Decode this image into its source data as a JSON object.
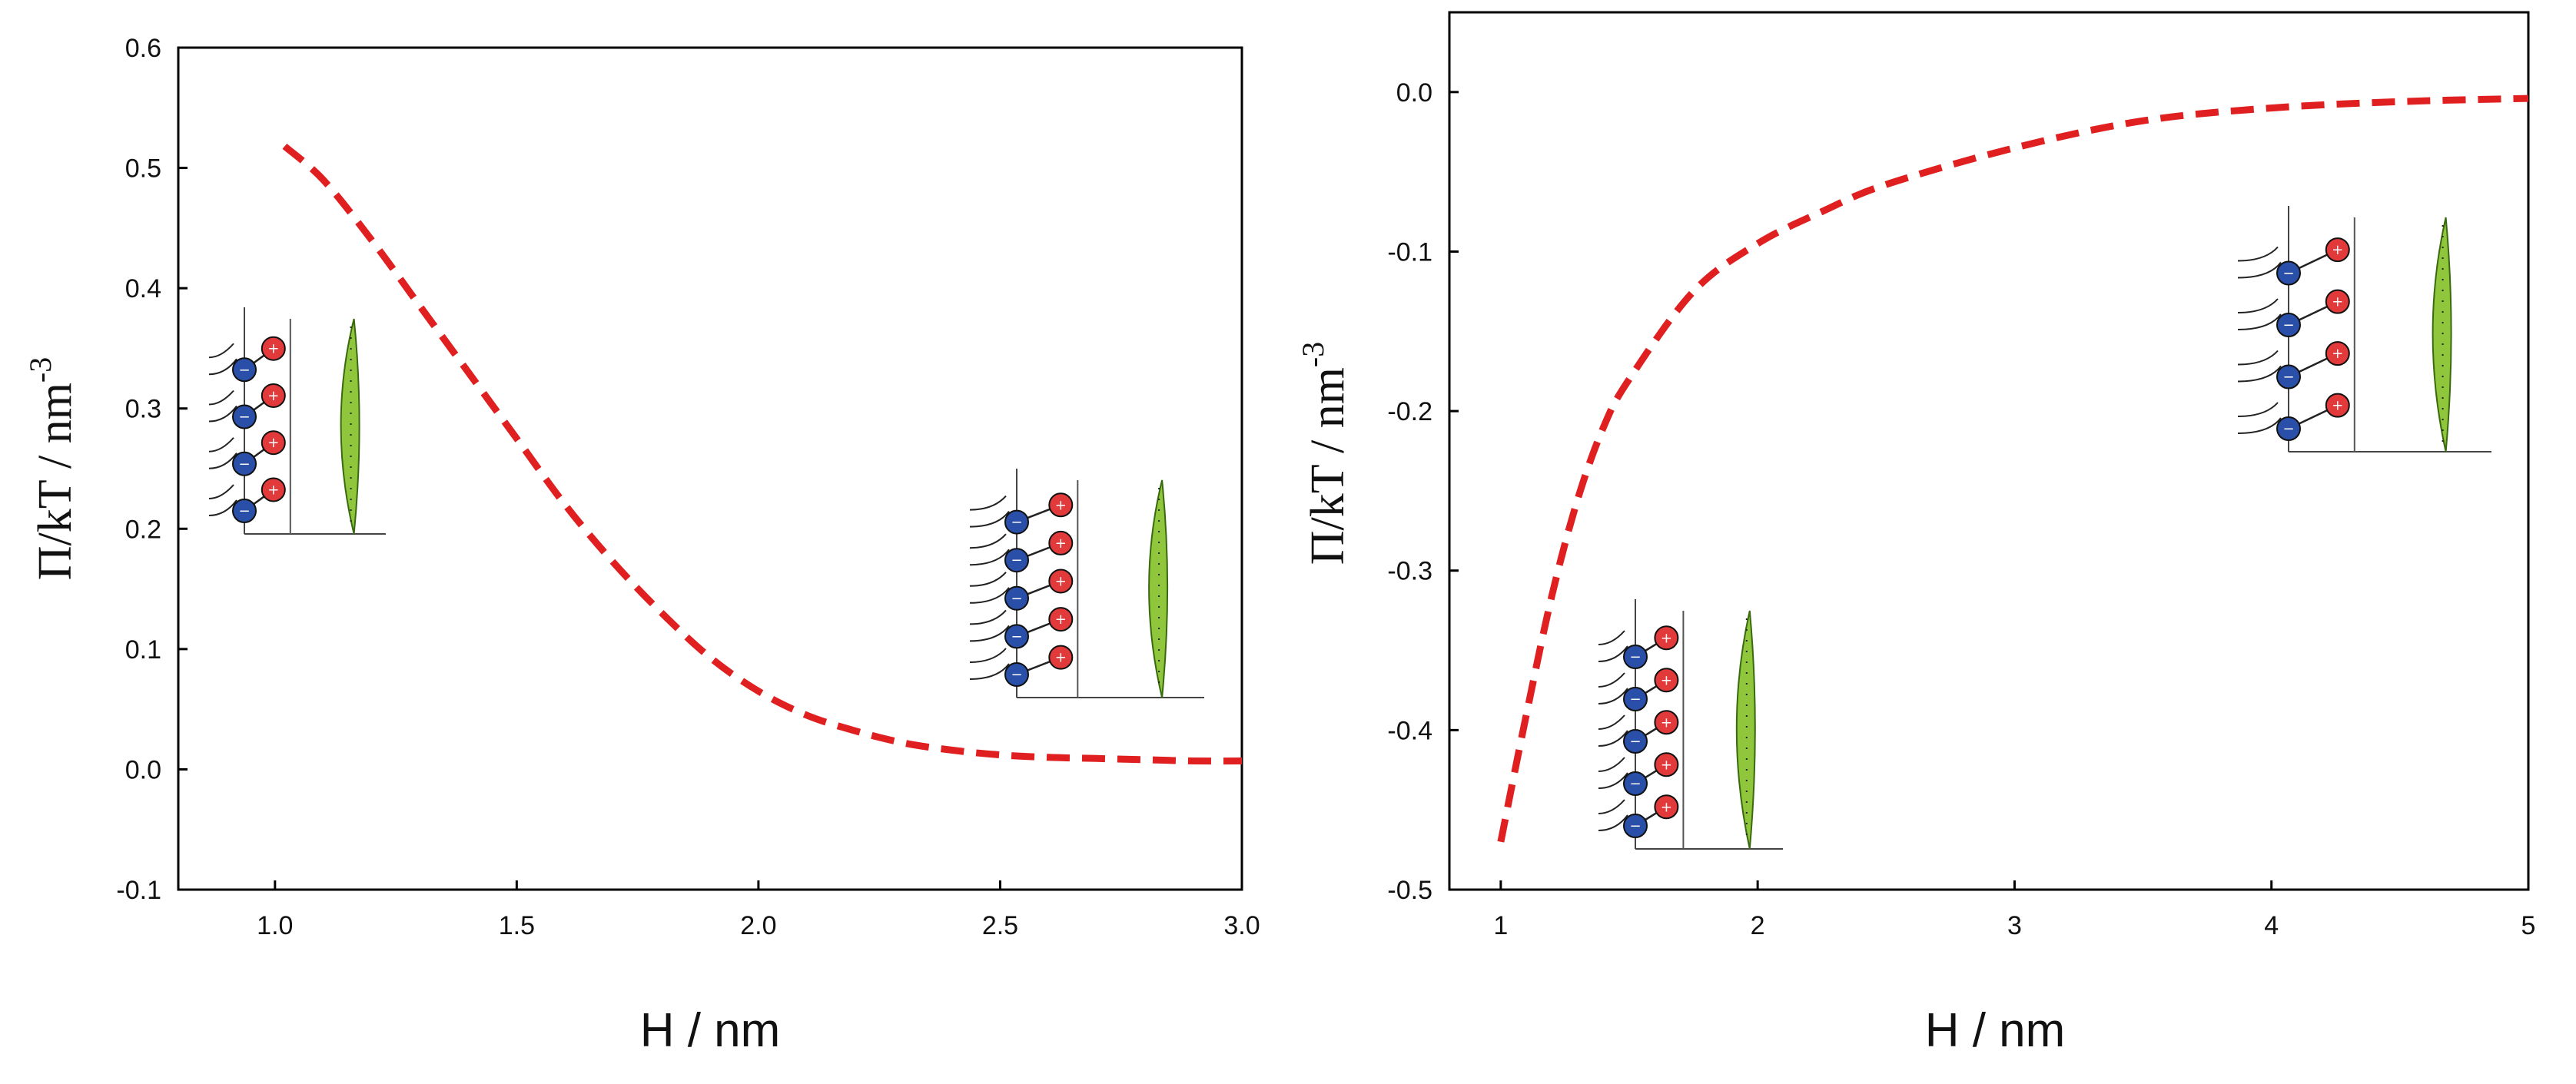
{
  "colors": {
    "curve": "#e02020",
    "axis": "#000000",
    "cation": "#2a4fa8",
    "anion": "#e23a3a",
    "particle": "#8fc63c"
  },
  "charts": [
    {
      "x_title": "H / nm",
      "y_title_main": "Π/kT   /  nm",
      "y_title_sup": "-3"
    },
    {
      "x_title": "H / nm",
      "y_title_main": "Π/kT   /  nm",
      "y_title_sup": "-3"
    }
  ],
  "chart_data": [
    {
      "type": "line",
      "xlabel": "H / nm",
      "ylabel": "Π/kT / nm^-3",
      "xlim": [
        0.8,
        3.0
      ],
      "ylim": [
        -0.1,
        0.6
      ],
      "x_ticks": [
        "1.0",
        "1.5",
        "2.0",
        "2.5",
        "3.0"
      ],
      "x_tick_values": [
        1.0,
        1.5,
        2.0,
        2.5,
        3.0
      ],
      "y_ticks": [
        "-0.1",
        "0.0",
        "0.1",
        "0.2",
        "0.3",
        "0.4",
        "0.5",
        "0.6"
      ],
      "y_tick_values": [
        -0.1,
        0.0,
        0.1,
        0.2,
        0.3,
        0.4,
        0.5,
        0.6
      ],
      "grid": false,
      "series": [
        {
          "style": "dashed",
          "x": [
            1.02,
            1.1,
            1.2,
            1.3,
            1.4,
            1.5,
            1.6,
            1.7,
            1.8,
            1.9,
            2.0,
            2.1,
            2.2,
            2.3,
            2.4,
            2.5,
            2.6,
            2.7,
            2.8,
            2.9,
            3.0
          ],
          "y": [
            0.518,
            0.49,
            0.44,
            0.385,
            0.33,
            0.275,
            0.22,
            0.172,
            0.13,
            0.093,
            0.065,
            0.045,
            0.032,
            0.022,
            0.016,
            0.012,
            0.01,
            0.009,
            0.008,
            0.007,
            0.007
          ]
        }
      ]
    },
    {
      "type": "line",
      "xlabel": "H / nm",
      "ylabel": "Π/kT / nm^-3",
      "xlim": [
        0.8,
        5.0
      ],
      "ylim": [
        -0.5,
        0.05
      ],
      "x_ticks": [
        "1",
        "2",
        "3",
        "4",
        "5"
      ],
      "x_tick_values": [
        1,
        2,
        3,
        4,
        5
      ],
      "y_ticks": [
        "-0.5",
        "-0.4",
        "-0.3",
        "-0.2",
        "-0.1",
        "0.0"
      ],
      "y_tick_values": [
        -0.5,
        -0.4,
        -0.3,
        -0.2,
        -0.1,
        0.0
      ],
      "grid": false,
      "series": [
        {
          "style": "dashed",
          "x": [
            1.0,
            1.1,
            1.2,
            1.3,
            1.4,
            1.5,
            1.75,
            2.0,
            2.25,
            2.5,
            3.0,
            3.5,
            4.0,
            4.5,
            5.0
          ],
          "y": [
            -0.47,
            -0.39,
            -0.315,
            -0.255,
            -0.21,
            -0.18,
            -0.125,
            -0.095,
            -0.075,
            -0.058,
            -0.035,
            -0.018,
            -0.01,
            -0.006,
            -0.004
          ]
        }
      ]
    }
  ],
  "insets": [
    {
      "chart": 0,
      "rows": 4,
      "labels": [
        "−",
        "+"
      ]
    },
    {
      "chart": 0,
      "rows": 5,
      "labels": [
        "−",
        "+"
      ]
    },
    {
      "chart": 1,
      "rows": 5,
      "labels": [
        "−",
        "+"
      ]
    },
    {
      "chart": 1,
      "rows": 4,
      "labels": [
        "−",
        "+"
      ]
    }
  ]
}
